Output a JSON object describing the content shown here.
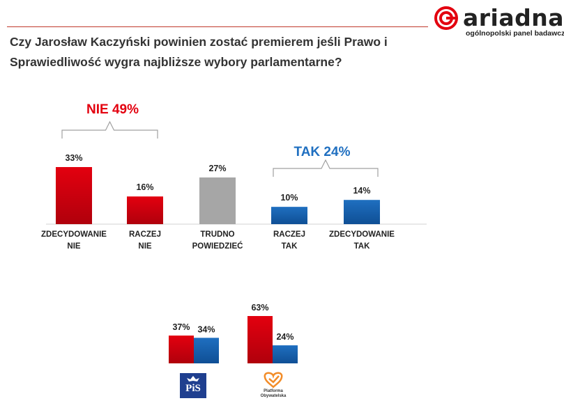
{
  "header": {
    "title": "Czy Jarosław Kaczyński powinien zostać premierem jeśli Prawo i Sprawiedliwość wygra najbliższe wybory parlamentarne?",
    "logo_text": "ariadna",
    "logo_subtitle": "ogólnopolski panel badawczy"
  },
  "colors": {
    "red": "#e3000f",
    "gray": "#a6a6a6",
    "blue": "#1f6fc0",
    "accent_red": "#e3000f",
    "accent_blue": "#1f6fc0"
  },
  "chart_data": [
    {
      "type": "bar",
      "categories": [
        [
          "ZDECYDOWANIE",
          "NIE"
        ],
        [
          "RACZEJ",
          "NIE"
        ],
        [
          "TRUDNO",
          "POWIEDZIEĆ"
        ],
        [
          "RACZEJ",
          "TAK"
        ],
        [
          "ZDECYDOWANIE",
          "TAK"
        ]
      ],
      "values": [
        33,
        16,
        27,
        10,
        14
      ],
      "value_labels": [
        "33%",
        "16%",
        "27%",
        "10%",
        "14%"
      ],
      "bar_colors": [
        "red",
        "red",
        "gray",
        "blue",
        "blue"
      ],
      "groups": [
        {
          "label": "NIE 49%",
          "color": "red",
          "from": 0,
          "to": 1
        },
        {
          "label": "TAK 24%",
          "color": "blue",
          "from": 3,
          "to": 4
        }
      ]
    },
    {
      "type": "bar",
      "categories": [
        "PiS",
        "Platforma Obywatelska"
      ],
      "series": [
        {
          "values": [
            37,
            63
          ],
          "value_labels": [
            "37%",
            "63%"
          ],
          "color": "red"
        },
        {
          "values": [
            34,
            24
          ],
          "value_labels": [
            "34%",
            "24%"
          ],
          "color": "blue"
        }
      ]
    }
  ],
  "badges": {
    "pis": "PiS",
    "po_line1": "Platforma",
    "po_line2": "Obywatelska"
  }
}
